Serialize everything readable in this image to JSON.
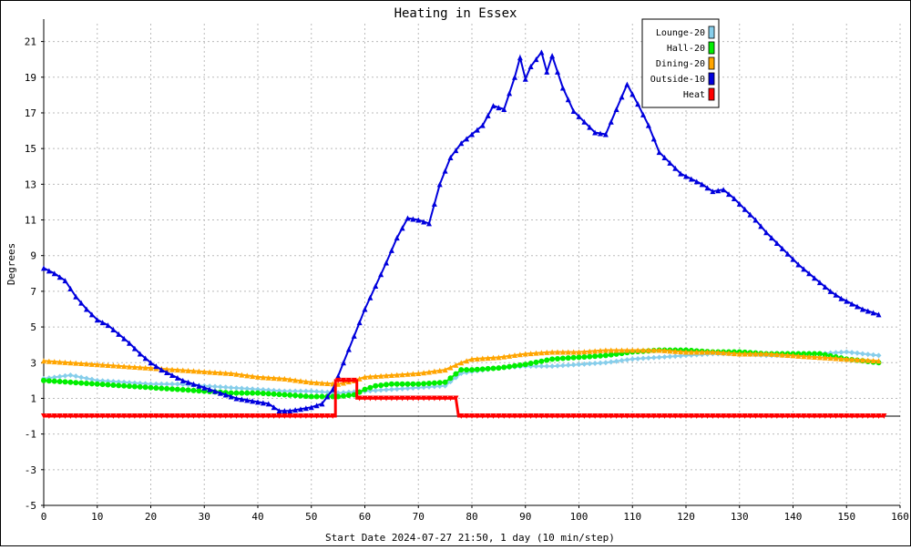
{
  "chart_data": {
    "type": "line",
    "title": "Heating in Essex",
    "xlabel": "Start Date 2024-07-27 21:50, 1 day (10 min/step)",
    "ylabel": "Degrees",
    "xlim": [
      0,
      160
    ],
    "ylim": [
      -5,
      22
    ],
    "x_ticks": [
      0,
      10,
      20,
      30,
      40,
      50,
      60,
      70,
      80,
      90,
      100,
      110,
      120,
      130,
      140,
      150,
      160
    ],
    "y_ticks": [
      -5,
      -3,
      -1,
      1,
      3,
      5,
      7,
      9,
      11,
      13,
      15,
      17,
      19,
      21
    ],
    "grid": true,
    "legend_position": "top-right",
    "series": [
      {
        "name": "Lounge-20",
        "color": "#87ceeb",
        "marker": "diamond",
        "points": [
          [
            0,
            2.1
          ],
          [
            5,
            2.3
          ],
          [
            10,
            2.0
          ],
          [
            15,
            1.9
          ],
          [
            20,
            1.8
          ],
          [
            25,
            1.8
          ],
          [
            30,
            1.7
          ],
          [
            35,
            1.6
          ],
          [
            40,
            1.5
          ],
          [
            45,
            1.4
          ],
          [
            50,
            1.4
          ],
          [
            55,
            1.3
          ],
          [
            60,
            1.4
          ],
          [
            65,
            1.5
          ],
          [
            70,
            1.6
          ],
          [
            75,
            1.7
          ],
          [
            78,
            2.4
          ],
          [
            80,
            2.5
          ],
          [
            85,
            2.7
          ],
          [
            90,
            2.8
          ],
          [
            95,
            2.8
          ],
          [
            100,
            2.9
          ],
          [
            105,
            3.0
          ],
          [
            110,
            3.2
          ],
          [
            115,
            3.3
          ],
          [
            120,
            3.4
          ],
          [
            125,
            3.5
          ],
          [
            130,
            3.5
          ],
          [
            135,
            3.4
          ],
          [
            140,
            3.4
          ],
          [
            145,
            3.5
          ],
          [
            150,
            3.6
          ],
          [
            156,
            3.4
          ]
        ]
      },
      {
        "name": "Hall-20",
        "color": "#00ee00",
        "marker": "circle",
        "points": [
          [
            0,
            2.0
          ],
          [
            5,
            1.9
          ],
          [
            10,
            1.8
          ],
          [
            15,
            1.7
          ],
          [
            20,
            1.6
          ],
          [
            25,
            1.5
          ],
          [
            30,
            1.4
          ],
          [
            35,
            1.3
          ],
          [
            40,
            1.3
          ],
          [
            45,
            1.2
          ],
          [
            50,
            1.1
          ],
          [
            55,
            1.1
          ],
          [
            58,
            1.2
          ],
          [
            60,
            1.5
          ],
          [
            62,
            1.7
          ],
          [
            65,
            1.8
          ],
          [
            70,
            1.8
          ],
          [
            75,
            1.9
          ],
          [
            78,
            2.6
          ],
          [
            80,
            2.6
          ],
          [
            85,
            2.7
          ],
          [
            90,
            2.9
          ],
          [
            95,
            3.2
          ],
          [
            100,
            3.3
          ],
          [
            105,
            3.4
          ],
          [
            110,
            3.6
          ],
          [
            115,
            3.7
          ],
          [
            120,
            3.7
          ],
          [
            125,
            3.6
          ],
          [
            130,
            3.6
          ],
          [
            135,
            3.5
          ],
          [
            140,
            3.5
          ],
          [
            145,
            3.5
          ],
          [
            150,
            3.2
          ],
          [
            156,
            3.0
          ]
        ]
      },
      {
        "name": "Dining-20",
        "color": "#ffa500",
        "marker": "triangle",
        "points": [
          [
            0,
            3.1
          ],
          [
            5,
            3.0
          ],
          [
            10,
            2.9
          ],
          [
            15,
            2.8
          ],
          [
            20,
            2.7
          ],
          [
            25,
            2.6
          ],
          [
            30,
            2.5
          ],
          [
            35,
            2.4
          ],
          [
            40,
            2.2
          ],
          [
            45,
            2.1
          ],
          [
            50,
            1.9
          ],
          [
            55,
            1.8
          ],
          [
            58,
            2.0
          ],
          [
            60,
            2.2
          ],
          [
            65,
            2.3
          ],
          [
            70,
            2.4
          ],
          [
            75,
            2.6
          ],
          [
            78,
            3.0
          ],
          [
            80,
            3.2
          ],
          [
            85,
            3.3
          ],
          [
            90,
            3.5
          ],
          [
            95,
            3.6
          ],
          [
            100,
            3.6
          ],
          [
            105,
            3.7
          ],
          [
            110,
            3.7
          ],
          [
            115,
            3.7
          ],
          [
            120,
            3.6
          ],
          [
            125,
            3.6
          ],
          [
            130,
            3.5
          ],
          [
            135,
            3.5
          ],
          [
            140,
            3.4
          ],
          [
            145,
            3.3
          ],
          [
            150,
            3.2
          ],
          [
            156,
            3.1
          ]
        ]
      },
      {
        "name": "Outside-10",
        "color": "#0000dd",
        "marker": "triangle",
        "points": [
          [
            0,
            8.3
          ],
          [
            2,
            8.0
          ],
          [
            4,
            7.6
          ],
          [
            6,
            6.7
          ],
          [
            8,
            6.0
          ],
          [
            10,
            5.4
          ],
          [
            12,
            5.1
          ],
          [
            14,
            4.6
          ],
          [
            16,
            4.1
          ],
          [
            18,
            3.5
          ],
          [
            20,
            3.0
          ],
          [
            22,
            2.6
          ],
          [
            24,
            2.3
          ],
          [
            26,
            2.0
          ],
          [
            28,
            1.8
          ],
          [
            30,
            1.6
          ],
          [
            32,
            1.4
          ],
          [
            34,
            1.2
          ],
          [
            36,
            1.0
          ],
          [
            38,
            0.9
          ],
          [
            40,
            0.8
          ],
          [
            42,
            0.7
          ],
          [
            44,
            0.3
          ],
          [
            46,
            0.3
          ],
          [
            48,
            0.4
          ],
          [
            50,
            0.5
          ],
          [
            52,
            0.7
          ],
          [
            54,
            1.5
          ],
          [
            56,
            3.0
          ],
          [
            58,
            4.5
          ],
          [
            60,
            6.0
          ],
          [
            62,
            7.3
          ],
          [
            64,
            8.6
          ],
          [
            66,
            10.0
          ],
          [
            68,
            11.1
          ],
          [
            70,
            11.0
          ],
          [
            72,
            10.8
          ],
          [
            74,
            13.0
          ],
          [
            76,
            14.5
          ],
          [
            78,
            15.3
          ],
          [
            80,
            15.8
          ],
          [
            82,
            16.3
          ],
          [
            84,
            17.4
          ],
          [
            86,
            17.2
          ],
          [
            88,
            19.0
          ],
          [
            89,
            20.1
          ],
          [
            90,
            18.9
          ],
          [
            91,
            19.6
          ],
          [
            93,
            20.4
          ],
          [
            94,
            19.3
          ],
          [
            95,
            20.2
          ],
          [
            97,
            18.4
          ],
          [
            99,
            17.1
          ],
          [
            101,
            16.5
          ],
          [
            103,
            15.9
          ],
          [
            105,
            15.8
          ],
          [
            107,
            17.2
          ],
          [
            109,
            18.6
          ],
          [
            111,
            17.5
          ],
          [
            113,
            16.3
          ],
          [
            115,
            14.8
          ],
          [
            117,
            14.2
          ],
          [
            119,
            13.6
          ],
          [
            121,
            13.3
          ],
          [
            123,
            13.0
          ],
          [
            125,
            12.6
          ],
          [
            127,
            12.7
          ],
          [
            129,
            12.2
          ],
          [
            131,
            11.6
          ],
          [
            133,
            11.0
          ],
          [
            135,
            10.3
          ],
          [
            137,
            9.7
          ],
          [
            139,
            9.1
          ],
          [
            141,
            8.5
          ],
          [
            143,
            8.0
          ],
          [
            145,
            7.5
          ],
          [
            147,
            7.0
          ],
          [
            149,
            6.6
          ],
          [
            151,
            6.3
          ],
          [
            153,
            6.0
          ],
          [
            155,
            5.8
          ],
          [
            156,
            5.7
          ]
        ]
      },
      {
        "name": "Heat",
        "color": "#ff0000",
        "marker": "triangle-down",
        "points": [
          [
            0,
            0
          ],
          [
            54.5,
            0
          ],
          [
            54.5,
            2.0
          ],
          [
            58.5,
            2.0
          ],
          [
            58.5,
            1.0
          ],
          [
            77,
            1.0
          ],
          [
            77.5,
            0
          ],
          [
            157,
            0
          ]
        ]
      }
    ]
  }
}
